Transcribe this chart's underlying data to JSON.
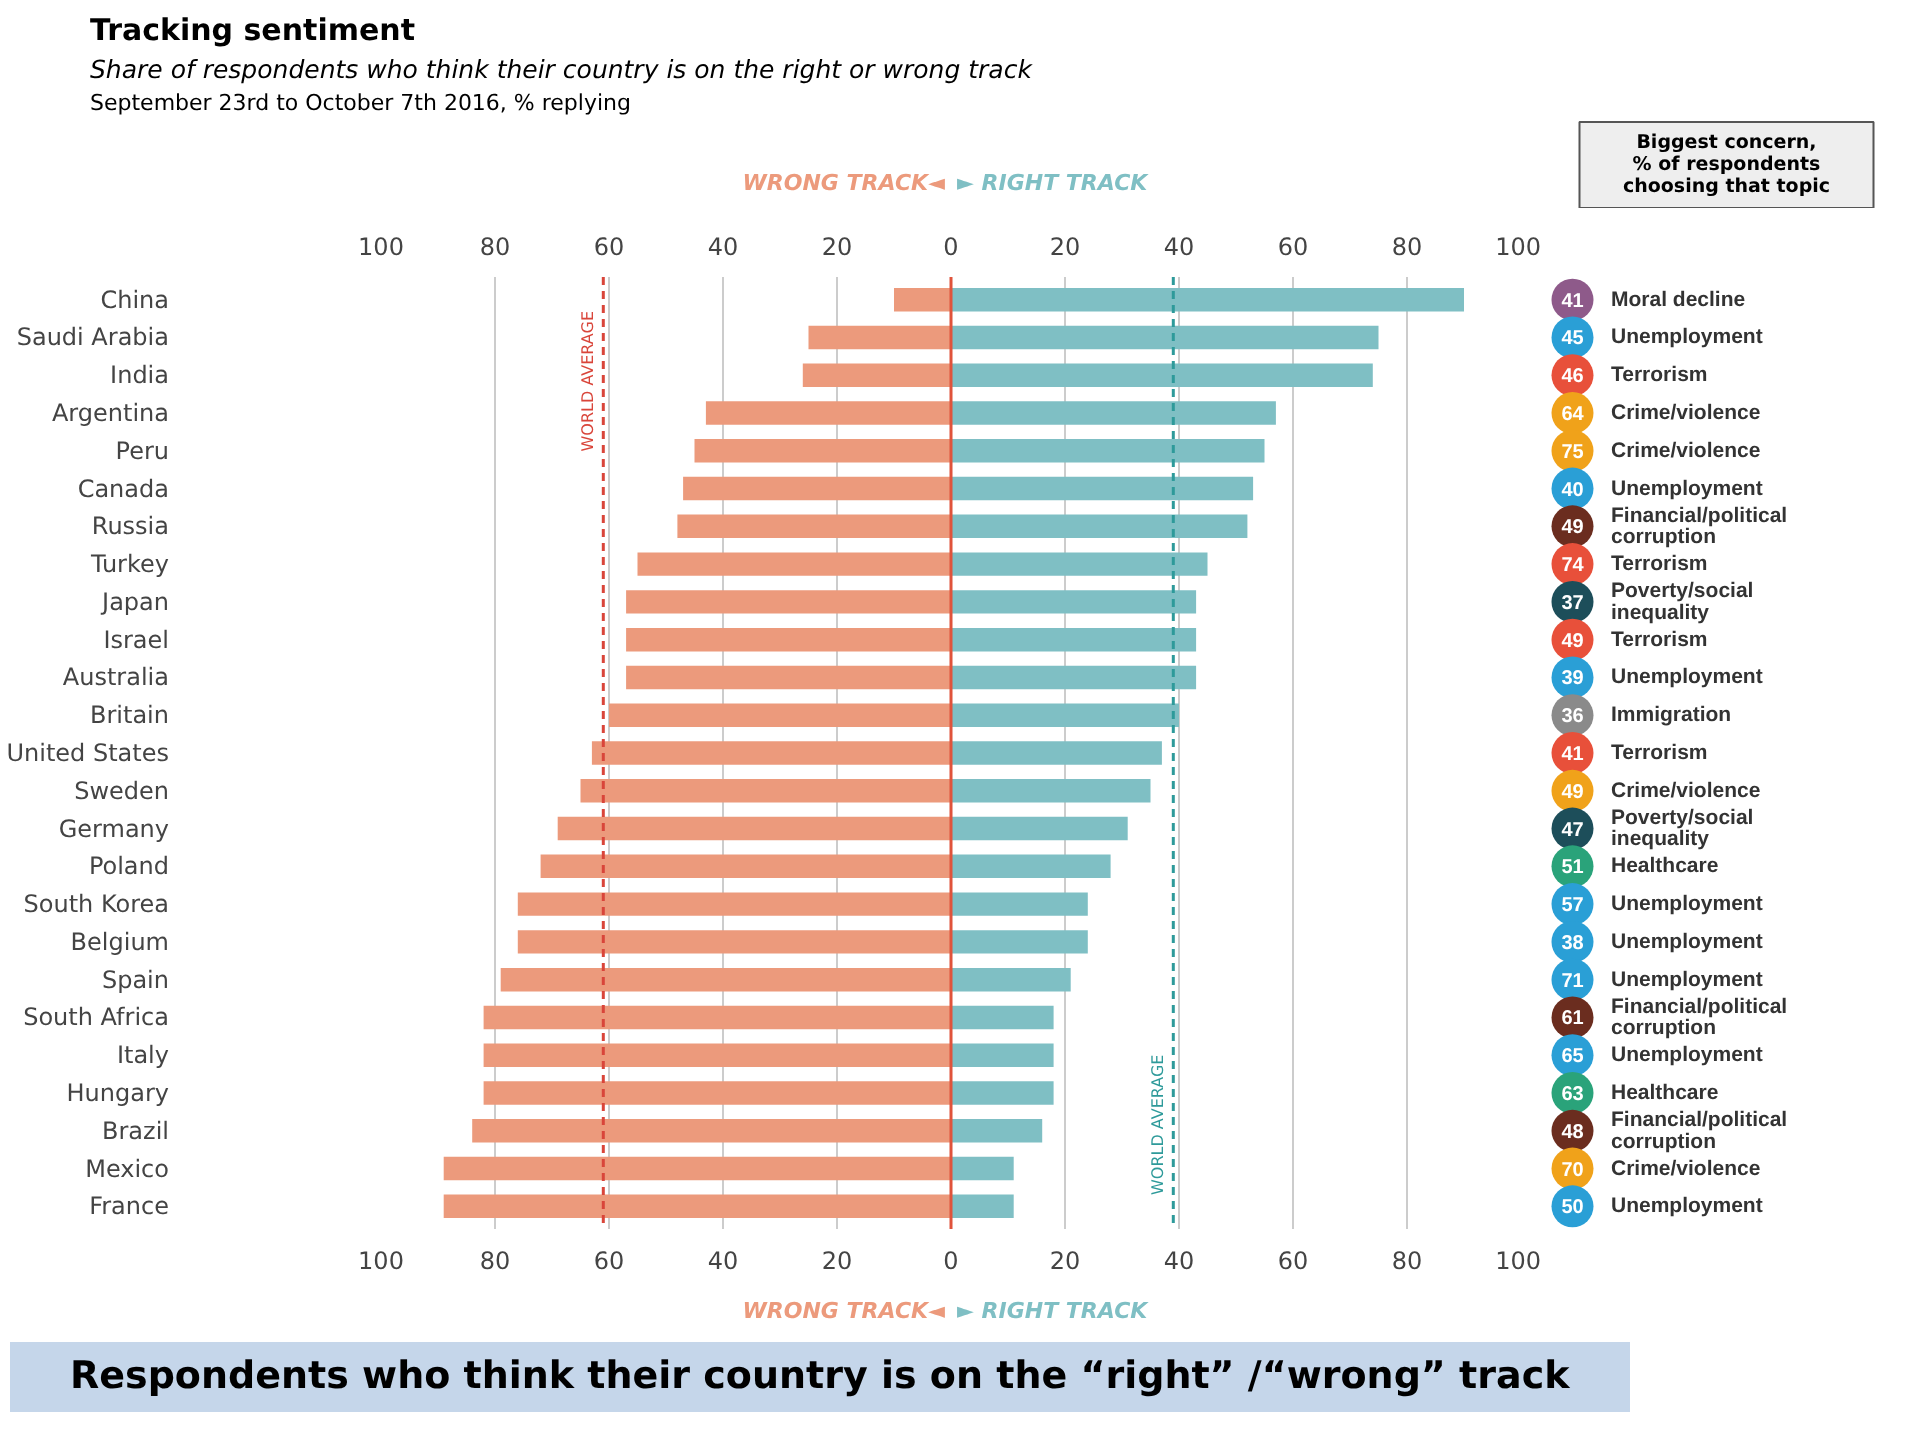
{
  "chart_data": [
    {
      "type": "bar",
      "title": "Tracking sentiment",
      "subtitle": "Share of respondents who think their country is on the right or wrong track",
      "annotations": [
        "September 23rd to October 7th 2016, % replying",
        "Respondents who think their country is on the “right” /“wrong” track"
      ],
      "categories": [
        "China",
        "Saudi Arabia",
        "India",
        "Argentina",
        "Peru",
        "Canada",
        "Russia",
        "Turkey",
        "Japan",
        "Israel",
        "Australia",
        "Britain",
        "United States",
        "Sweden",
        "Germany",
        "Poland",
        "South Korea",
        "Belgium",
        "Spain",
        "South Africa",
        "Italy",
        "Hungary",
        "Brazil",
        "Mexico",
        "France"
      ],
      "orientation": "horizontal",
      "stacked": true,
      "grid": "x",
      "series": [
        {
          "name": "WRONG TRACK◄",
          "color": "#ec9a7c",
          "values": [
            -10,
            -25,
            -26,
            -43,
            -45,
            -47,
            -48,
            -55,
            -57,
            -57,
            -57,
            -60,
            -63,
            -65,
            -69,
            -72,
            -76,
            -76,
            -79,
            -82,
            -82,
            -82,
            -84,
            -89,
            -89
          ]
        },
        {
          "name": "► RIGHT TRACK",
          "color": "#7fbfc4",
          "values": [
            90,
            75,
            74,
            57,
            55,
            53,
            52,
            45,
            43,
            43,
            43,
            40,
            37,
            35,
            31,
            28,
            24,
            24,
            21,
            18,
            18,
            18,
            16,
            11,
            11
          ]
        }
      ],
      "xlim": [
        -100,
        100
      ],
      "xticks": [
        {
          "value": -100,
          "label": "100"
        },
        {
          "value": -80,
          "label": "80"
        },
        {
          "value": -60,
          "label": "60"
        },
        {
          "value": -40,
          "label": "40"
        },
        {
          "value": -20,
          "label": "20"
        },
        0,
        20,
        40,
        60,
        80,
        100
      ],
      "x2lim": [
        -100,
        100
      ],
      "x2ticks": [
        {
          "value": -100,
          "label": "100"
        },
        {
          "value": -80,
          "label": "80"
        },
        {
          "value": -60,
          "label": "60"
        },
        {
          "value": -40,
          "label": "40"
        },
        {
          "value": -20,
          "label": "20"
        },
        0,
        20,
        40,
        60,
        80,
        100
      ],
      "ref_lines": [
        {
          "axis": "x",
          "value": -61,
          "label": "WORLD AVERAGE",
          "color": "#d9453a",
          "line_style": "dashed"
        },
        {
          "axis": "x",
          "value": 39,
          "label": "WORLD AVERAGE",
          "color": "#2e9a9a",
          "line_style": "dashed"
        },
        {
          "axis": "x",
          "value": 0,
          "color": "#e0533b",
          "line_style": "solid"
        }
      ]
    },
    {
      "type": "other",
      "title": "Biggest concern,\n% of respondents\nchoosing that topic",
      "data_labels": true,
      "categories": [
        "Moral decline",
        "Unemployment",
        "Terrorism",
        "Crime/violence",
        "Crime/violence",
        "Unemployment",
        "Financial/political corruption",
        "Terrorism",
        "Poverty/social inequality",
        "Terrorism",
        "Unemployment",
        "Immigration",
        "Terrorism",
        "Crime/violence",
        "Poverty/social inequality",
        "Healthcare",
        "Unemployment",
        "Unemployment",
        "Unemployment",
        "Financial/political corruption",
        "Unemployment",
        "Healthcare",
        "Financial/political corruption",
        "Crime/violence",
        "Unemployment"
      ],
      "values": [
        41,
        45,
        46,
        64,
        75,
        40,
        49,
        74,
        37,
        49,
        39,
        36,
        41,
        49,
        47,
        51,
        57,
        38,
        71,
        61,
        65,
        63,
        48,
        70,
        50
      ],
      "colors": [
        "#8e5a8a",
        "#2a9fd6",
        "#e8503a",
        "#f0a21a",
        "#f0a21a",
        "#2a9fd6",
        "#6b2d1f",
        "#e8503a",
        "#1d4e5a",
        "#e8503a",
        "#2a9fd6",
        "#8a8a8a",
        "#e8503a",
        "#f0a21a",
        "#1d4e5a",
        "#2aa37a",
        "#2a9fd6",
        "#2a9fd6",
        "#2a9fd6",
        "#6b2d1f",
        "#2a9fd6",
        "#2aa37a",
        "#6b2d1f",
        "#f0a21a",
        "#2a9fd6"
      ]
    }
  ]
}
